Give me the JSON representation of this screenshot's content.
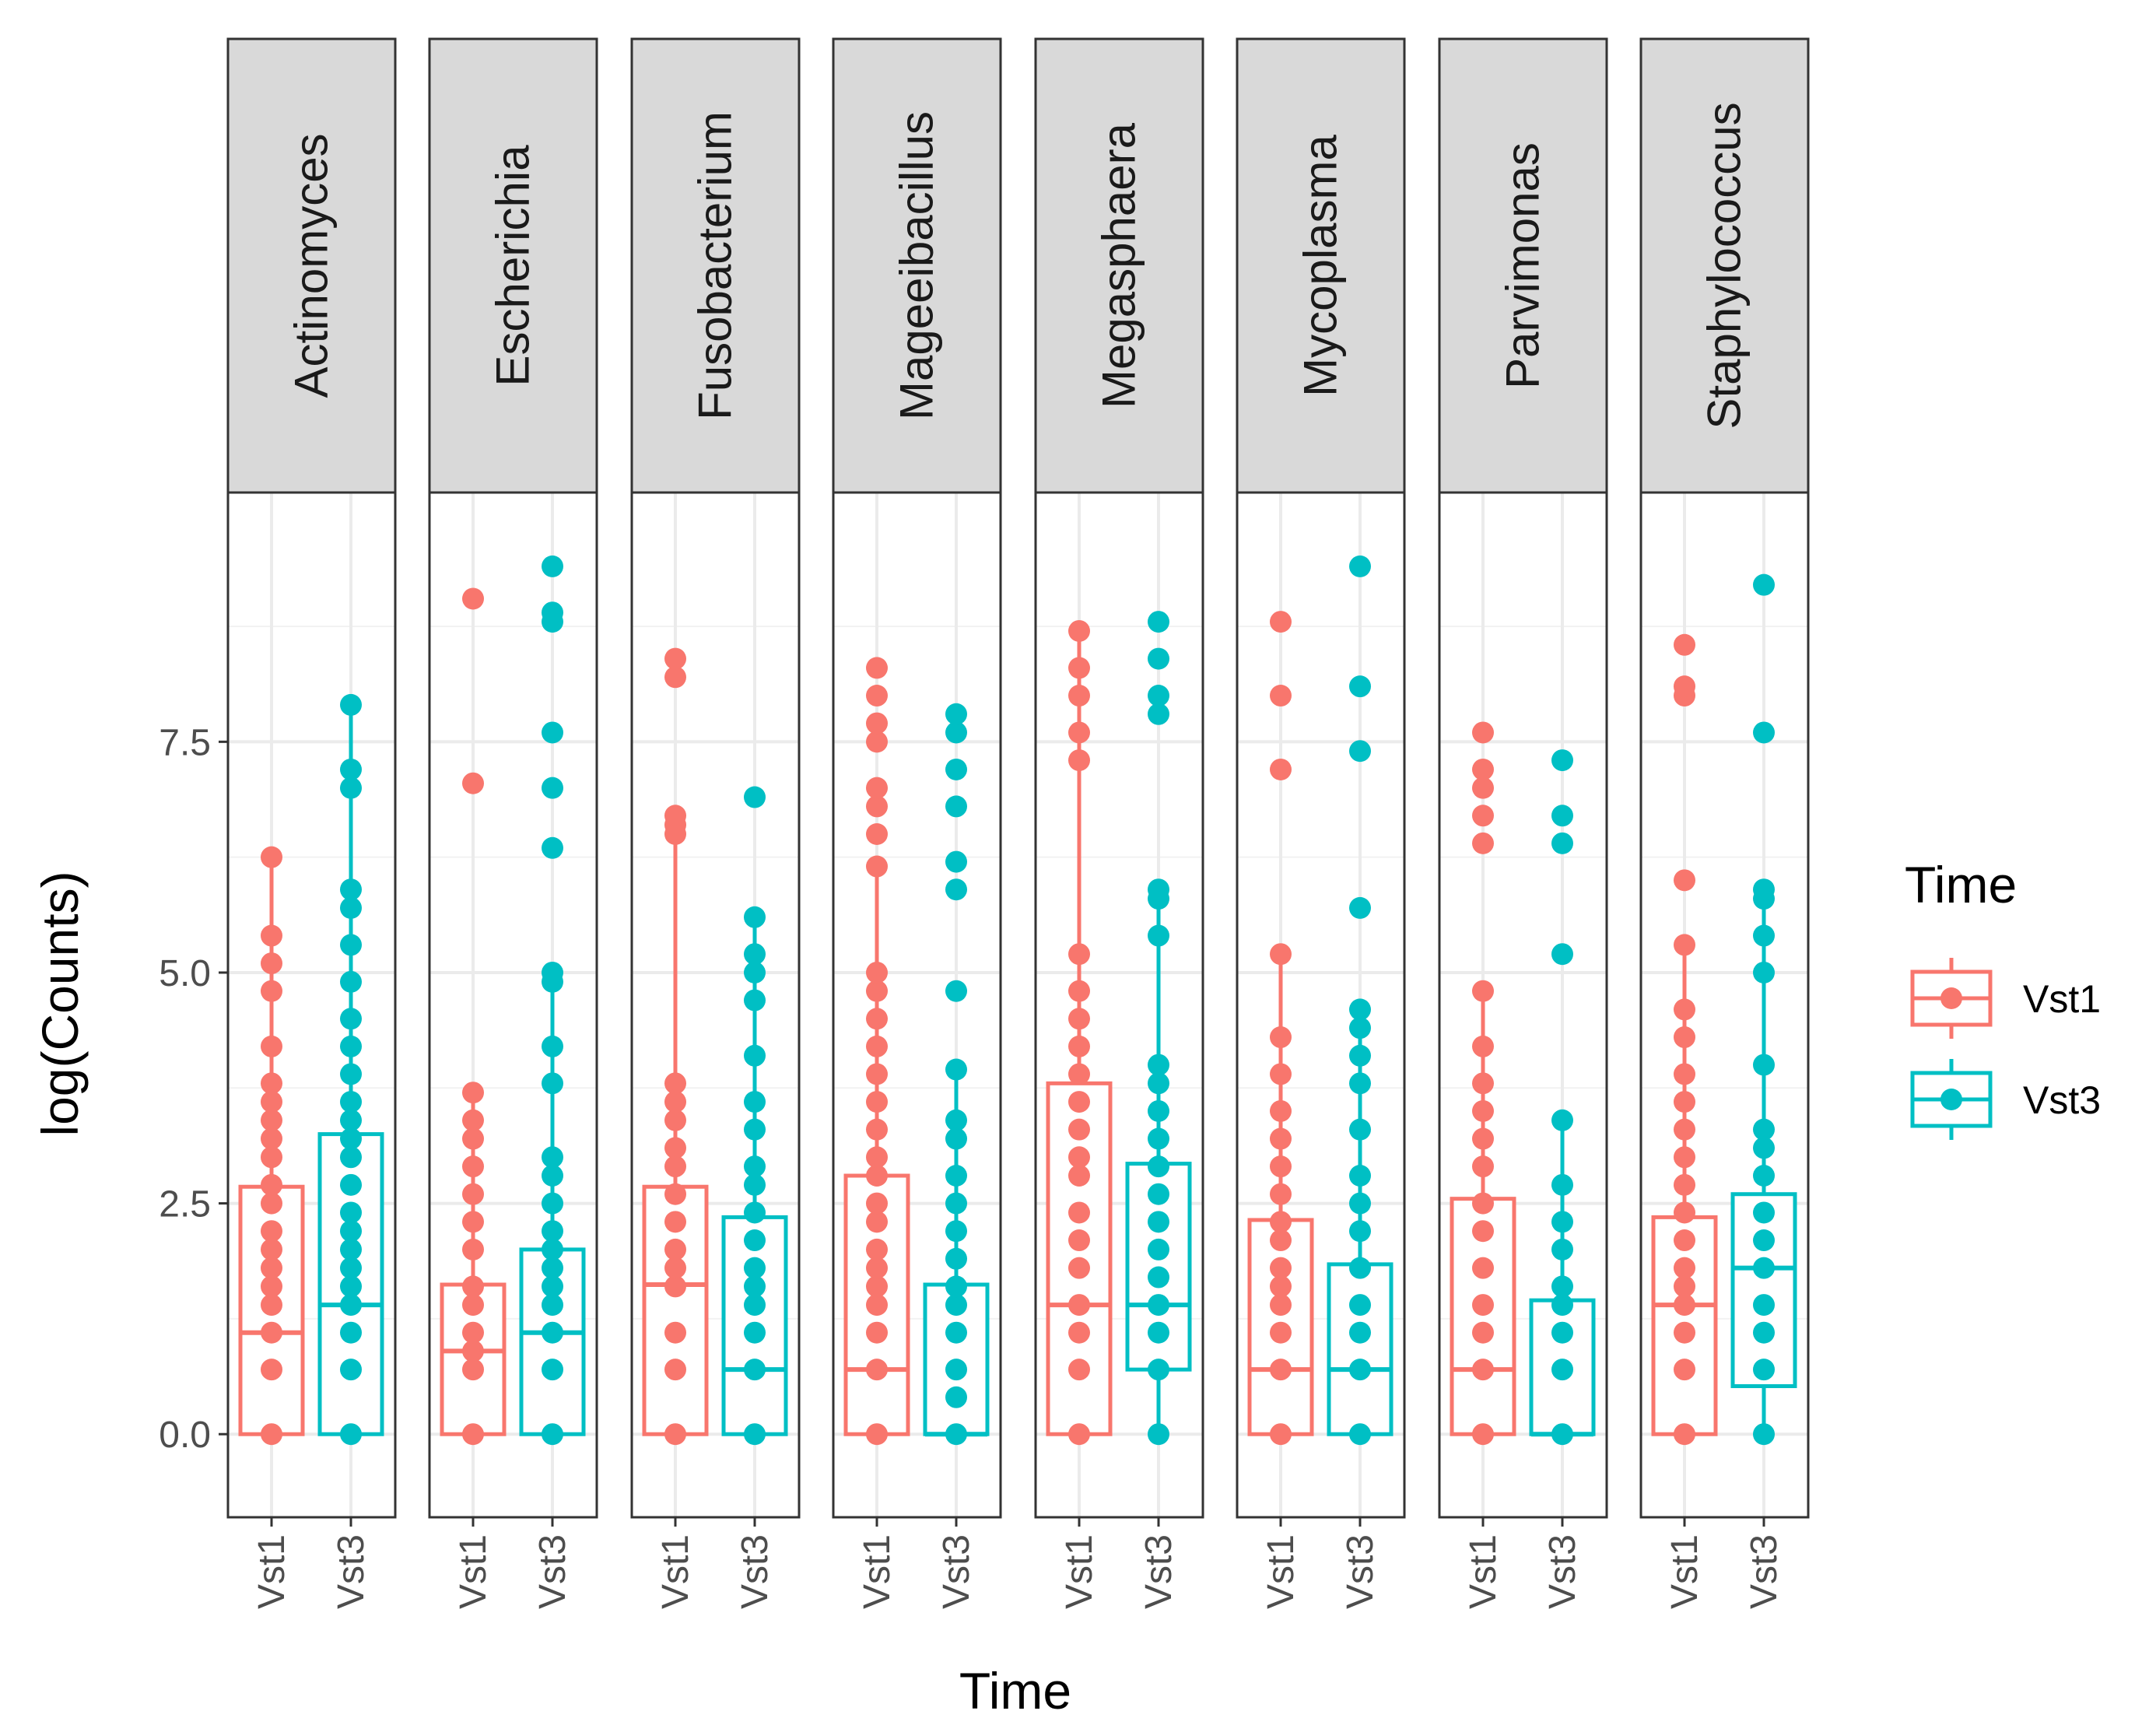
{
  "chart_data": {
    "type": "boxplot",
    "xlabel": "Time",
    "ylabel": "log(Counts)",
    "ylim": [
      -0.9,
      10.2
    ],
    "yticks": [
      0.0,
      2.5,
      5.0,
      7.5
    ],
    "ytick_labels": [
      "0.0",
      "2.5",
      "5.0",
      "7.5"
    ],
    "grid": true,
    "legend": {
      "title": "Time",
      "position": "right",
      "entries": [
        {
          "label": "Vst1",
          "color": "#F8766D"
        },
        {
          "label": "Vst3",
          "color": "#00BFC4"
        }
      ]
    },
    "series_colors": {
      "Vst1": "#F8766D",
      "Vst3": "#00BFC4"
    },
    "categories": [
      "Vst1",
      "Vst3"
    ],
    "facets": [
      {
        "name": "Actinomyces",
        "groups": [
          {
            "group": "Vst1",
            "box": {
              "lower_whisker": 0,
              "q1": 0,
              "median": 1.1,
              "q3": 2.68,
              "upper_whisker": 6.25
            },
            "points": [
              0,
              0.7,
              1.1,
              1.4,
              1.6,
              1.8,
              2.0,
              2.2,
              2.5,
              2.7,
              3.0,
              3.2,
              3.4,
              3.6,
              3.8,
              4.2,
              4.8,
              5.1,
              5.4,
              6.25
            ]
          },
          {
            "group": "Vst3",
            "box": {
              "lower_whisker": 0,
              "q1": 0,
              "median": 1.4,
              "q3": 3.25,
              "upper_whisker": 7.9
            },
            "points": [
              0,
              0.7,
              1.1,
              1.4,
              1.6,
              1.8,
              2.0,
              2.2,
              2.4,
              2.7,
              3.0,
              3.2,
              3.4,
              3.6,
              3.9,
              4.2,
              4.5,
              4.9,
              5.3,
              5.7,
              5.9,
              7.0,
              7.2,
              7.9
            ]
          }
        ]
      },
      {
        "name": "Escherichia",
        "groups": [
          {
            "group": "Vst1",
            "box": {
              "lower_whisker": 0,
              "q1": 0,
              "median": 0.9,
              "q3": 1.62,
              "upper_whisker": 3.7
            },
            "points": [
              0,
              0.7,
              0.9,
              1.1,
              1.4,
              1.6,
              2.0,
              2.3,
              2.6,
              2.9,
              3.2,
              3.4,
              3.7,
              7.05,
              9.05
            ]
          },
          {
            "group": "Vst3",
            "box": {
              "lower_whisker": 0,
              "q1": 0,
              "median": 1.1,
              "q3": 2.0,
              "upper_whisker": 4.9
            },
            "points": [
              0,
              0.7,
              1.1,
              1.4,
              1.6,
              1.8,
              2.0,
              2.2,
              2.5,
              2.8,
              3.0,
              3.8,
              4.2,
              4.9,
              5.0,
              6.35,
              7.0,
              7.6,
              8.8,
              8.9,
              9.4
            ]
          }
        ]
      },
      {
        "name": "Fusobacterium",
        "groups": [
          {
            "group": "Vst1",
            "box": {
              "lower_whisker": 0,
              "q1": 0,
              "median": 1.62,
              "q3": 2.68,
              "upper_whisker": 6.45
            },
            "points": [
              0,
              0.7,
              1.1,
              1.6,
              1.8,
              2.0,
              2.3,
              2.6,
              2.9,
              3.1,
              3.4,
              3.6,
              3.8,
              6.5,
              6.6,
              6.7,
              8.2,
              8.4
            ]
          },
          {
            "group": "Vst3",
            "box": {
              "lower_whisker": 0,
              "q1": 0,
              "median": 0.7,
              "q3": 2.35,
              "upper_whisker": 5.6
            },
            "points": [
              0,
              0.7,
              1.1,
              1.4,
              1.6,
              1.8,
              2.1,
              2.4,
              2.7,
              2.9,
              3.3,
              3.6,
              4.1,
              4.7,
              5.0,
              5.2,
              5.6,
              6.9
            ]
          }
        ]
      },
      {
        "name": "Mageeibacillus",
        "groups": [
          {
            "group": "Vst1",
            "box": {
              "lower_whisker": 0,
              "q1": 0,
              "median": 0.7,
              "q3": 2.8,
              "upper_whisker": 6.15
            },
            "points": [
              0,
              0.7,
              1.1,
              1.4,
              1.6,
              1.8,
              2.0,
              2.3,
              2.5,
              2.8,
              3.0,
              3.3,
              3.6,
              3.9,
              4.2,
              4.5,
              4.8,
              5.0,
              6.15,
              6.5,
              6.8,
              7.0,
              7.5,
              7.7,
              8.0,
              8.3
            ]
          },
          {
            "group": "Vst3",
            "box": {
              "lower_whisker": 0,
              "q1": 0,
              "median": 0,
              "q3": 1.62,
              "upper_whisker": 3.95
            },
            "points": [
              0,
              0.4,
              0.7,
              1.1,
              1.4,
              1.6,
              1.9,
              2.2,
              2.5,
              2.8,
              3.2,
              3.4,
              3.95,
              4.8,
              5.9,
              6.2,
              6.8,
              7.2,
              7.6,
              7.8
            ]
          }
        ]
      },
      {
        "name": "Megasphaera",
        "groups": [
          {
            "group": "Vst1",
            "box": {
              "lower_whisker": 0,
              "q1": 0,
              "median": 1.4,
              "q3": 3.8,
              "upper_whisker": 8.7
            },
            "points": [
              0,
              0.7,
              1.1,
              1.4,
              1.8,
              2.1,
              2.4,
              2.8,
              3.0,
              3.3,
              3.6,
              3.9,
              4.2,
              4.5,
              4.8,
              5.2,
              7.3,
              7.6,
              8.0,
              8.3,
              8.7
            ]
          },
          {
            "group": "Vst3",
            "box": {
              "lower_whisker": 0,
              "q1": 0.7,
              "median": 1.4,
              "q3": 2.93,
              "upper_whisker": 5.9
            },
            "points": [
              0,
              0.7,
              1.1,
              1.4,
              1.7,
              2.0,
              2.3,
              2.6,
              2.9,
              3.2,
              3.5,
              3.8,
              4.0,
              5.4,
              5.8,
              5.9,
              7.8,
              8.0,
              8.4,
              8.8
            ]
          }
        ]
      },
      {
        "name": "Mycoplasma",
        "groups": [
          {
            "group": "Vst1",
            "box": {
              "lower_whisker": 0,
              "q1": 0,
              "median": 0.7,
              "q3": 2.32,
              "upper_whisker": 5.2
            },
            "points": [
              0,
              0.7,
              1.1,
              1.4,
              1.6,
              1.8,
              2.1,
              2.3,
              2.6,
              2.9,
              3.2,
              3.5,
              3.9,
              4.3,
              5.2,
              7.2,
              8.0,
              8.8
            ]
          },
          {
            "group": "Vst3",
            "box": {
              "lower_whisker": 0,
              "q1": 0,
              "median": 0.7,
              "q3": 1.84,
              "upper_whisker": 4.6
            },
            "points": [
              0,
              0.7,
              1.1,
              1.4,
              1.8,
              2.2,
              2.5,
              2.8,
              3.3,
              3.8,
              4.1,
              4.4,
              4.6,
              5.7,
              7.4,
              8.1,
              9.4
            ]
          }
        ]
      },
      {
        "name": "Parvimonas",
        "groups": [
          {
            "group": "Vst1",
            "box": {
              "lower_whisker": 0,
              "q1": 0,
              "median": 0.7,
              "q3": 2.55,
              "upper_whisker": 4.85
            },
            "points": [
              0,
              0.7,
              1.1,
              1.4,
              1.8,
              2.2,
              2.5,
              2.9,
              3.2,
              3.5,
              3.8,
              4.2,
              4.8,
              6.4,
              6.7,
              7.0,
              7.2,
              7.6
            ]
          },
          {
            "group": "Vst3",
            "box": {
              "lower_whisker": 0,
              "q1": 0,
              "median": 0,
              "q3": 1.45,
              "upper_whisker": 3.4
            },
            "points": [
              0,
              0.7,
              1.1,
              1.4,
              1.6,
              2.0,
              2.3,
              2.7,
              3.4,
              5.2,
              6.4,
              6.7,
              7.3
            ]
          }
        ]
      },
      {
        "name": "Staphylococcus",
        "groups": [
          {
            "group": "Vst1",
            "box": {
              "lower_whisker": 0,
              "q1": 0,
              "median": 1.4,
              "q3": 2.35,
              "upper_whisker": 5.3
            },
            "points": [
              0,
              0.7,
              1.1,
              1.4,
              1.6,
              1.8,
              2.1,
              2.4,
              2.7,
              3.0,
              3.3,
              3.6,
              3.9,
              4.3,
              4.6,
              5.3,
              6.0,
              8.0,
              8.1,
              8.55
            ]
          },
          {
            "group": "Vst3",
            "box": {
              "lower_whisker": 0,
              "q1": 0.52,
              "median": 1.8,
              "q3": 2.6,
              "upper_whisker": 5.9
            },
            "points": [
              0,
              0.7,
              1.1,
              1.4,
              1.8,
              2.1,
              2.4,
              2.8,
              3.1,
              3.3,
              4.0,
              5.0,
              5.4,
              5.8,
              5.9,
              7.6,
              9.2
            ]
          }
        ]
      }
    ]
  }
}
